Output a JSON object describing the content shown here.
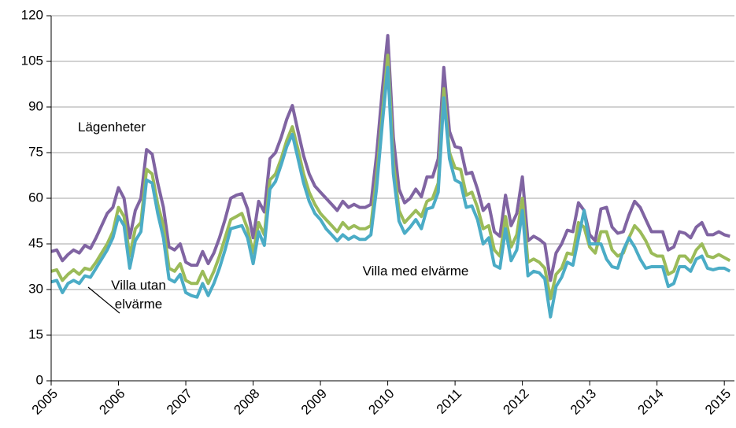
{
  "chart_data": {
    "type": "line",
    "x": [
      2005.0,
      2005.083,
      2005.167,
      2005.25,
      2005.333,
      2005.417,
      2005.5,
      2005.583,
      2005.667,
      2005.75,
      2005.833,
      2005.917,
      2006.0,
      2006.083,
      2006.167,
      2006.25,
      2006.333,
      2006.417,
      2006.5,
      2006.583,
      2006.667,
      2006.75,
      2006.833,
      2006.917,
      2007.0,
      2007.083,
      2007.167,
      2007.25,
      2007.333,
      2007.417,
      2007.5,
      2007.583,
      2007.667,
      2007.75,
      2007.833,
      2007.917,
      2008.0,
      2008.083,
      2008.167,
      2008.25,
      2008.333,
      2008.417,
      2008.5,
      2008.583,
      2008.667,
      2008.75,
      2008.833,
      2008.917,
      2009.0,
      2009.083,
      2009.167,
      2009.25,
      2009.333,
      2009.417,
      2009.5,
      2009.583,
      2009.667,
      2009.75,
      2009.833,
      2009.917,
      2010.0,
      2010.083,
      2010.167,
      2010.25,
      2010.333,
      2010.417,
      2010.5,
      2010.583,
      2010.667,
      2010.75,
      2010.833,
      2010.917,
      2011.0,
      2011.083,
      2011.167,
      2011.25,
      2011.333,
      2011.417,
      2011.5,
      2011.583,
      2011.667,
      2011.75,
      2011.833,
      2011.917,
      2012.0,
      2012.083,
      2012.167,
      2012.25,
      2012.333,
      2012.417,
      2012.5,
      2012.583,
      2012.667,
      2012.75,
      2012.833,
      2012.917,
      2013.0,
      2013.083,
      2013.167,
      2013.25,
      2013.333,
      2013.417,
      2013.5,
      2013.583,
      2013.667,
      2013.75,
      2013.833,
      2013.917,
      2014.0,
      2014.083,
      2014.167,
      2014.25,
      2014.333,
      2014.417,
      2014.5,
      2014.583,
      2014.667,
      2014.75,
      2014.833,
      2014.917,
      2015.0,
      2015.083
    ],
    "series": [
      {
        "name": "Lägenheter",
        "color": "#8064a2",
        "values": [
          42.5,
          43,
          39.5,
          41.5,
          43,
          42,
          44.5,
          43.5,
          47,
          51,
          55,
          57,
          63.5,
          60,
          47,
          56,
          60,
          76,
          74.5,
          65,
          57,
          44,
          43,
          45,
          39,
          38,
          38,
          42.5,
          38.5,
          42,
          47,
          53,
          60,
          61,
          61.5,
          56.5,
          47,
          59,
          55.5,
          73,
          75,
          80,
          86,
          90.5,
          82,
          74,
          68,
          64,
          62,
          60,
          58,
          56,
          59,
          57,
          58,
          57,
          57,
          58,
          74,
          95,
          113.5,
          80,
          63,
          58.5,
          60,
          63,
          60.5,
          67,
          67,
          73,
          103,
          82,
          77,
          76.5,
          68,
          68.5,
          63,
          56,
          58,
          49,
          47.5,
          61,
          51,
          55,
          67,
          46,
          47.5,
          46.5,
          45,
          33,
          42,
          45,
          49.5,
          49,
          58.5,
          56,
          48,
          46,
          56.5,
          57,
          50.5,
          48.5,
          49,
          54.5,
          59,
          57,
          53,
          49,
          49,
          49,
          43,
          44,
          49,
          48.5,
          47,
          50.5,
          52,
          48,
          48,
          49,
          48,
          47.5
        ]
      },
      {
        "name": "Villa utan elvärme",
        "color": "#9bbb59",
        "values": [
          36,
          36.5,
          33,
          35,
          36.5,
          35,
          37,
          36.5,
          39,
          42,
          45,
          49,
          57,
          54,
          41,
          50,
          52,
          69.5,
          68,
          58,
          51,
          37,
          36,
          38.5,
          33,
          32,
          32,
          36,
          32,
          36,
          41,
          47,
          53,
          54,
          55,
          50,
          42,
          52,
          48,
          66,
          68,
          73,
          79,
          83.5,
          76,
          68,
          62,
          58,
          55,
          53,
          51,
          49,
          52,
          50,
          51,
          50,
          50,
          51,
          67,
          87,
          107,
          72,
          56,
          52,
          54,
          56,
          54,
          59,
          60,
          65,
          96,
          75,
          70,
          69.5,
          61,
          62,
          57,
          50,
          51,
          43,
          41,
          54,
          44,
          48,
          60,
          39,
          40,
          39,
          37,
          27,
          35,
          37,
          42,
          41.5,
          52,
          50.5,
          44,
          42,
          49,
          49,
          43,
          41,
          42,
          47,
          51,
          49,
          46,
          42,
          41,
          41,
          35,
          36,
          41,
          41,
          39,
          43,
          45,
          41,
          40.5,
          41.5,
          40.5,
          39.5
        ]
      },
      {
        "name": "Villa med elvärme",
        "color": "#4bacc6",
        "values": [
          32.5,
          33,
          29,
          32,
          33,
          32,
          34.5,
          34,
          37,
          40,
          43,
          47,
          54,
          51,
          37,
          46,
          49,
          66,
          65,
          55,
          47,
          33.5,
          32.5,
          35,
          29,
          28,
          27.5,
          32,
          28,
          32,
          37,
          43,
          50,
          50.5,
          51,
          47,
          38.5,
          49,
          44.5,
          63,
          65.5,
          71,
          77,
          81,
          73,
          65,
          59,
          55,
          53,
          50,
          48,
          46,
          48,
          46.5,
          47.5,
          46.5,
          46.5,
          48,
          63,
          84,
          103,
          68,
          52.5,
          48.5,
          50.5,
          53,
          50,
          56.5,
          57,
          62,
          93,
          73,
          66,
          65,
          57,
          57.5,
          53,
          45,
          47,
          38,
          37,
          50,
          39.5,
          43,
          56,
          34.5,
          36,
          35.5,
          33.5,
          21,
          31,
          34,
          39,
          38,
          47,
          56,
          45,
          45,
          45,
          40,
          37.5,
          37,
          43,
          47,
          44,
          40,
          37,
          37.5,
          37.5,
          37.5,
          31,
          32,
          37.5,
          37.5,
          36,
          40,
          41,
          37,
          36.5,
          37,
          37,
          36
        ]
      }
    ],
    "xlim": [
      2005,
      2015.15
    ],
    "xticks": [
      2005,
      2006,
      2007,
      2008,
      2009,
      2010,
      2011,
      2012,
      2013,
      2014,
      2015
    ],
    "ylim": [
      0,
      120
    ],
    "yticks": [
      0,
      15,
      30,
      45,
      60,
      75,
      90,
      105,
      120
    ],
    "grid": true
  }
}
